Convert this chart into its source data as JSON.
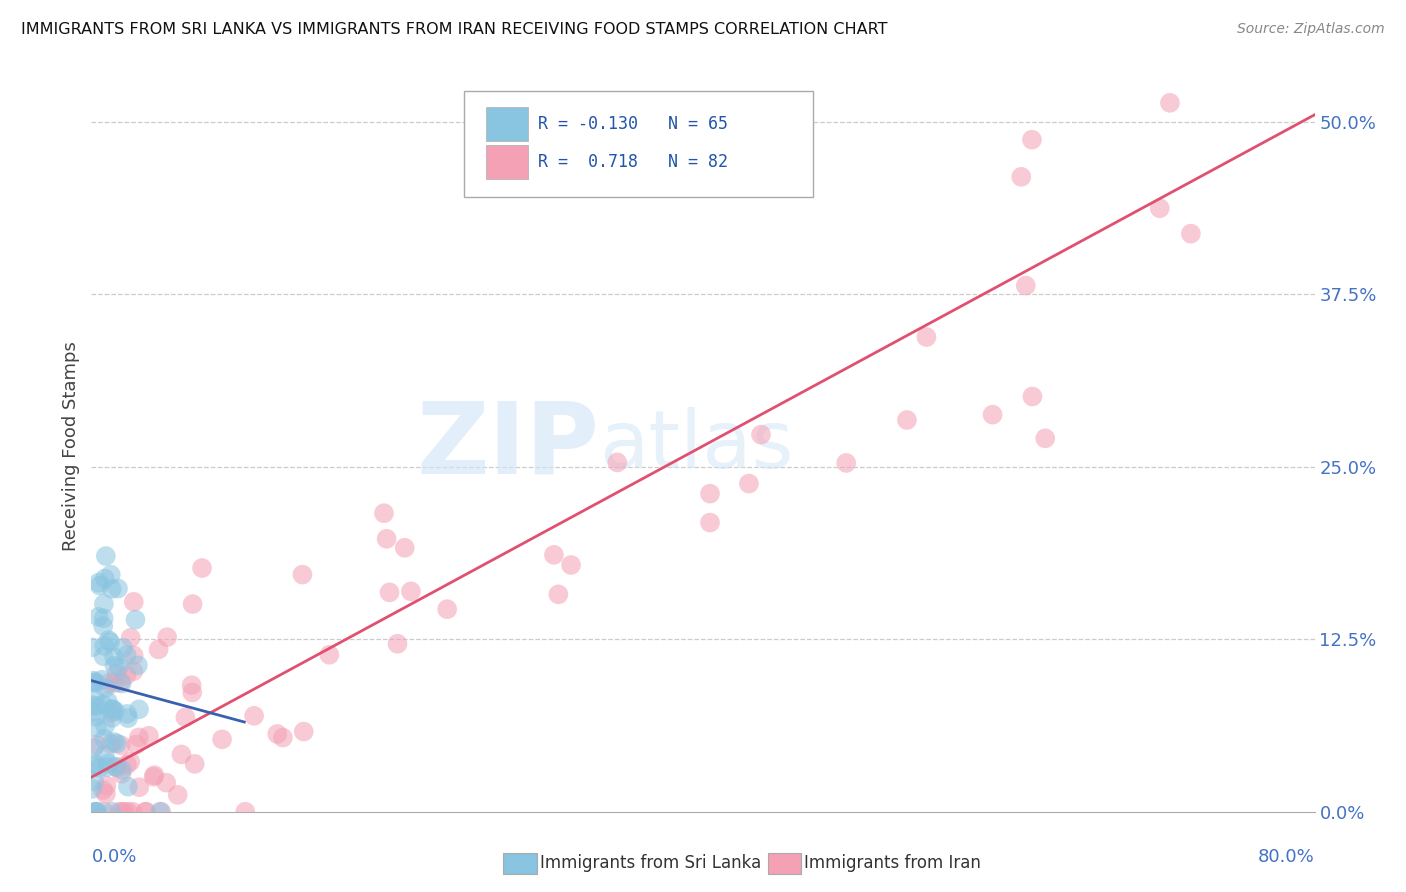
{
  "title": "IMMIGRANTS FROM SRI LANKA VS IMMIGRANTS FROM IRAN RECEIVING FOOD STAMPS CORRELATION CHART",
  "source": "Source: ZipAtlas.com",
  "ylabel": "Receiving Food Stamps",
  "ytick_vals": [
    0.0,
    12.5,
    25.0,
    37.5,
    50.0
  ],
  "ytick_labels": [
    "0.0%",
    "12.5%",
    "25.0%",
    "37.5%",
    "50.0%"
  ],
  "xlim": [
    0,
    80
  ],
  "ylim": [
    0,
    53
  ],
  "color_sri_lanka": "#89C4E1",
  "color_iran": "#F4A0B5",
  "color_line_sl": "#3A60B0",
  "color_line_iran": "#E05070",
  "color_axis_labels": "#4472C4",
  "watermark_zip": "ZIP",
  "watermark_atlas": "atlas",
  "r_sl": "-0.130",
  "n_sl": "65",
  "r_iran": "0.718",
  "n_iran": "82",
  "legend_label_sl": "Immigrants from Sri Lanka",
  "legend_label_iran": "Immigrants from Iran",
  "iran_line_x0": 0,
  "iran_line_y0": 2.5,
  "iran_line_x1": 80,
  "iran_line_y1": 50.5,
  "sl_line_x0": 0,
  "sl_line_y0": 9.5,
  "sl_line_x1": 10,
  "sl_line_y1": 6.5
}
